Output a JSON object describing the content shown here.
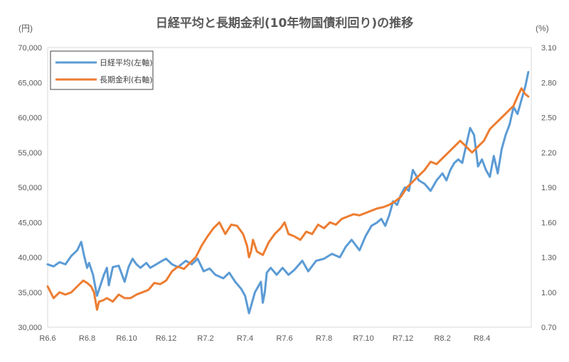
{
  "chart_data": {
    "type": "line",
    "title": "日経平均と長期金利(10年物国債利回り)の推移",
    "left_unit": "(円)",
    "right_unit": "(%)",
    "x_ticks": [
      "R6.6",
      "R6.8",
      "R6.10",
      "R6.12",
      "R7.2",
      "R7.4",
      "R7.6",
      "R7.8",
      "R7.10",
      "R7.12",
      "R8.2",
      "R8.4"
    ],
    "x_range": [
      0,
      24.5
    ],
    "y_left": {
      "range": [
        30000,
        70000
      ],
      "ticks": [
        "30,000",
        "35,000",
        "40,000",
        "45,000",
        "50,000",
        "55,000",
        "60,000",
        "65,000",
        "70,000"
      ]
    },
    "y_right": {
      "range": [
        0.7,
        3.1
      ],
      "ticks": [
        "0.70",
        "1.00",
        "1.30",
        "1.60",
        "1.90",
        "2.20",
        "2.50",
        "2.80",
        "3.10"
      ]
    },
    "grid": false,
    "legend_position": "top-left",
    "series": [
      {
        "name": "日経平均(左軸)",
        "axis": "left",
        "color": "#5B9BD5",
        "x": [
          0,
          0.3,
          0.6,
          0.9,
          1.2,
          1.5,
          1.7,
          1.85,
          2.0,
          2.1,
          2.3,
          2.5,
          2.7,
          2.85,
          3.0,
          3.1,
          3.3,
          3.6,
          3.9,
          4.1,
          4.3,
          4.5,
          4.7,
          5.0,
          5.2,
          5.5,
          5.8,
          6.0,
          6.3,
          6.6,
          7.0,
          7.3,
          7.6,
          7.9,
          8.2,
          8.5,
          8.9,
          9.2,
          9.5,
          9.8,
          10.0,
          10.2,
          10.5,
          10.8,
          10.9,
          11.0,
          11.1,
          11.3,
          11.6,
          11.9,
          12.2,
          12.5,
          12.9,
          13.2,
          13.6,
          14.0,
          14.4,
          14.8,
          15.1,
          15.4,
          15.8,
          16.1,
          16.4,
          16.7,
          16.9,
          17.1,
          17.3,
          17.5,
          17.7,
          17.9,
          18.1,
          18.3,
          18.5,
          18.8,
          19.1,
          19.4,
          19.7,
          20.0,
          20.2,
          20.4,
          20.6,
          20.8,
          21.0,
          21.2,
          21.4,
          21.6,
          21.8,
          22.0,
          22.2,
          22.4,
          22.6,
          22.8,
          23.0,
          23.2,
          23.4,
          23.6,
          23.8,
          24.0,
          24.2,
          24.35
        ],
        "values": [
          39000,
          38700,
          39300,
          39000,
          40200,
          41000,
          42200,
          40200,
          38500,
          39200,
          37500,
          34500,
          36200,
          37500,
          38500,
          36000,
          38600,
          38800,
          36500,
          38600,
          39800,
          39000,
          38500,
          39200,
          38500,
          39000,
          39500,
          39800,
          39000,
          38600,
          39500,
          39000,
          39800,
          38000,
          38400,
          37500,
          37000,
          37800,
          36500,
          35500,
          34500,
          32000,
          35000,
          36500,
          33500,
          35000,
          37800,
          38500,
          37500,
          38500,
          37500,
          38200,
          39500,
          38000,
          39500,
          39800,
          40500,
          40000,
          41500,
          42500,
          41000,
          43000,
          44500,
          45000,
          45500,
          44500,
          46000,
          48000,
          47500,
          49000,
          50000,
          49500,
          52500,
          51000,
          50500,
          49500,
          51000,
          52000,
          51000,
          52500,
          53500,
          54000,
          53500,
          56000,
          58500,
          57500,
          53000,
          54000,
          52500,
          51500,
          54500,
          52000,
          55500,
          57500,
          59000,
          61500,
          60500,
          62500,
          64500,
          66500
        ]
      },
      {
        "name": "長期金利(右軸)",
        "axis": "right",
        "color": "#ED7D31",
        "x": [
          0,
          0.3,
          0.6,
          0.9,
          1.2,
          1.5,
          1.8,
          2.0,
          2.2,
          2.35,
          2.5,
          2.6,
          2.8,
          3.0,
          3.3,
          3.6,
          3.9,
          4.2,
          4.5,
          4.8,
          5.1,
          5.4,
          5.7,
          6.0,
          6.3,
          6.6,
          6.9,
          7.2,
          7.5,
          7.8,
          8.1,
          8.4,
          8.7,
          9.0,
          9.3,
          9.6,
          9.9,
          10.1,
          10.2,
          10.3,
          10.4,
          10.6,
          10.9,
          11.2,
          11.5,
          11.8,
          12.0,
          12.2,
          12.5,
          12.8,
          13.1,
          13.4,
          13.7,
          14.0,
          14.3,
          14.6,
          14.9,
          15.2,
          15.5,
          15.8,
          16.1,
          16.4,
          16.7,
          17.0,
          17.3,
          17.6,
          17.9,
          18.2,
          18.5,
          18.8,
          19.1,
          19.4,
          19.7,
          20.0,
          20.3,
          20.6,
          20.9,
          21.2,
          21.5,
          21.8,
          22.1,
          22.4,
          22.7,
          23.0,
          23.3,
          23.6,
          23.8,
          24.0,
          24.2,
          24.35
        ],
        "values": [
          1.05,
          0.95,
          1.0,
          0.98,
          1.0,
          1.05,
          1.1,
          1.08,
          1.05,
          1.0,
          0.85,
          0.92,
          0.93,
          0.95,
          0.92,
          0.98,
          0.95,
          0.95,
          0.98,
          1.0,
          1.02,
          1.08,
          1.07,
          1.1,
          1.18,
          1.22,
          1.2,
          1.25,
          1.3,
          1.4,
          1.48,
          1.55,
          1.6,
          1.5,
          1.58,
          1.57,
          1.5,
          1.4,
          1.3,
          1.35,
          1.45,
          1.35,
          1.32,
          1.43,
          1.5,
          1.55,
          1.6,
          1.5,
          1.48,
          1.45,
          1.52,
          1.5,
          1.58,
          1.55,
          1.6,
          1.58,
          1.63,
          1.65,
          1.67,
          1.66,
          1.68,
          1.7,
          1.72,
          1.73,
          1.75,
          1.78,
          1.82,
          1.9,
          1.95,
          2.0,
          2.05,
          2.12,
          2.1,
          2.15,
          2.2,
          2.25,
          2.3,
          2.25,
          2.2,
          2.25,
          2.3,
          2.4,
          2.45,
          2.5,
          2.55,
          2.6,
          2.68,
          2.75,
          2.7,
          2.68
        ]
      }
    ]
  }
}
